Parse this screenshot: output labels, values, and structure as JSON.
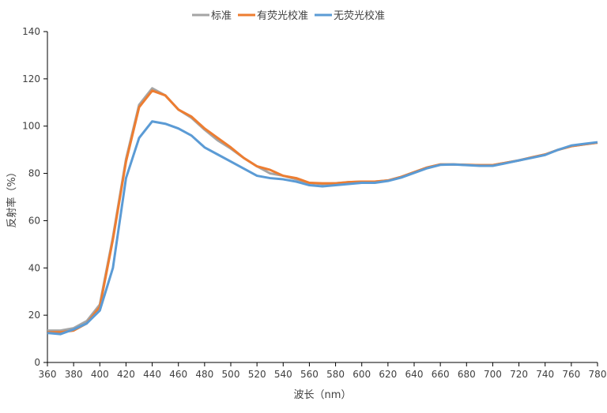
{
  "chart_data": {
    "type": "line",
    "title": "",
    "xlabel": "波长（nm）",
    "ylabel": "反射率（%）",
    "xlim": [
      360,
      780
    ],
    "ylim": [
      0,
      140
    ],
    "xticks": [
      360,
      380,
      400,
      420,
      440,
      460,
      480,
      500,
      520,
      540,
      560,
      580,
      600,
      620,
      640,
      660,
      680,
      700,
      720,
      740,
      760,
      780
    ],
    "yticks": [
      0,
      20,
      40,
      60,
      80,
      100,
      120,
      140
    ],
    "grid": false,
    "legend_position": "top-center",
    "x": [
      360,
      370,
      380,
      390,
      400,
      410,
      420,
      430,
      440,
      450,
      460,
      470,
      480,
      490,
      500,
      510,
      520,
      530,
      540,
      550,
      560,
      570,
      580,
      590,
      600,
      610,
      620,
      630,
      640,
      650,
      660,
      670,
      680,
      690,
      700,
      710,
      720,
      730,
      740,
      750,
      760,
      770,
      780
    ],
    "series": [
      {
        "name": "标准",
        "color": "#A5A5A5",
        "values": [
          13.5,
          13.5,
          14.5,
          17.5,
          24.5,
          53,
          86,
          109,
          116,
          113,
          107,
          103.5,
          98.5,
          94,
          90.5,
          86.5,
          83,
          80,
          79,
          77.5,
          76,
          75.5,
          75.8,
          76.3,
          76.5,
          76.5,
          77,
          78.5,
          80.5,
          82.5,
          83.8,
          83.8,
          83.6,
          83.5,
          83.5,
          84.5,
          85.5,
          86.8,
          88,
          90,
          91.5,
          92.3,
          93
        ]
      },
      {
        "name": "有荧光校准",
        "color": "#ED7D31",
        "values": [
          12.8,
          12.8,
          13.5,
          16.5,
          23.5,
          52,
          85,
          108,
          115,
          113,
          107,
          104,
          99,
          95,
          91,
          86.5,
          83,
          81.5,
          79,
          78,
          76,
          75.8,
          75.8,
          76.3,
          76.5,
          76.5,
          77,
          78.5,
          80.5,
          82.5,
          83.8,
          83.8,
          83.6,
          83.5,
          83.5,
          84.5,
          85.5,
          86.8,
          88,
          90,
          91.5,
          92.3,
          93
        ]
      },
      {
        "name": "无荧光校准",
        "color": "#5B9BD5",
        "values": [
          12.5,
          12,
          14,
          16.5,
          22,
          40,
          78,
          95,
          102,
          101,
          99,
          96,
          91,
          88,
          85,
          82,
          79,
          78,
          77.5,
          76.5,
          75,
          74.5,
          75,
          75.5,
          76,
          76,
          76.8,
          78.2,
          80.2,
          82.2,
          83.6,
          83.8,
          83.5,
          83.2,
          83.2,
          84.3,
          85.5,
          86.6,
          87.8,
          90,
          91.8,
          92.5,
          93.2
        ]
      }
    ]
  }
}
